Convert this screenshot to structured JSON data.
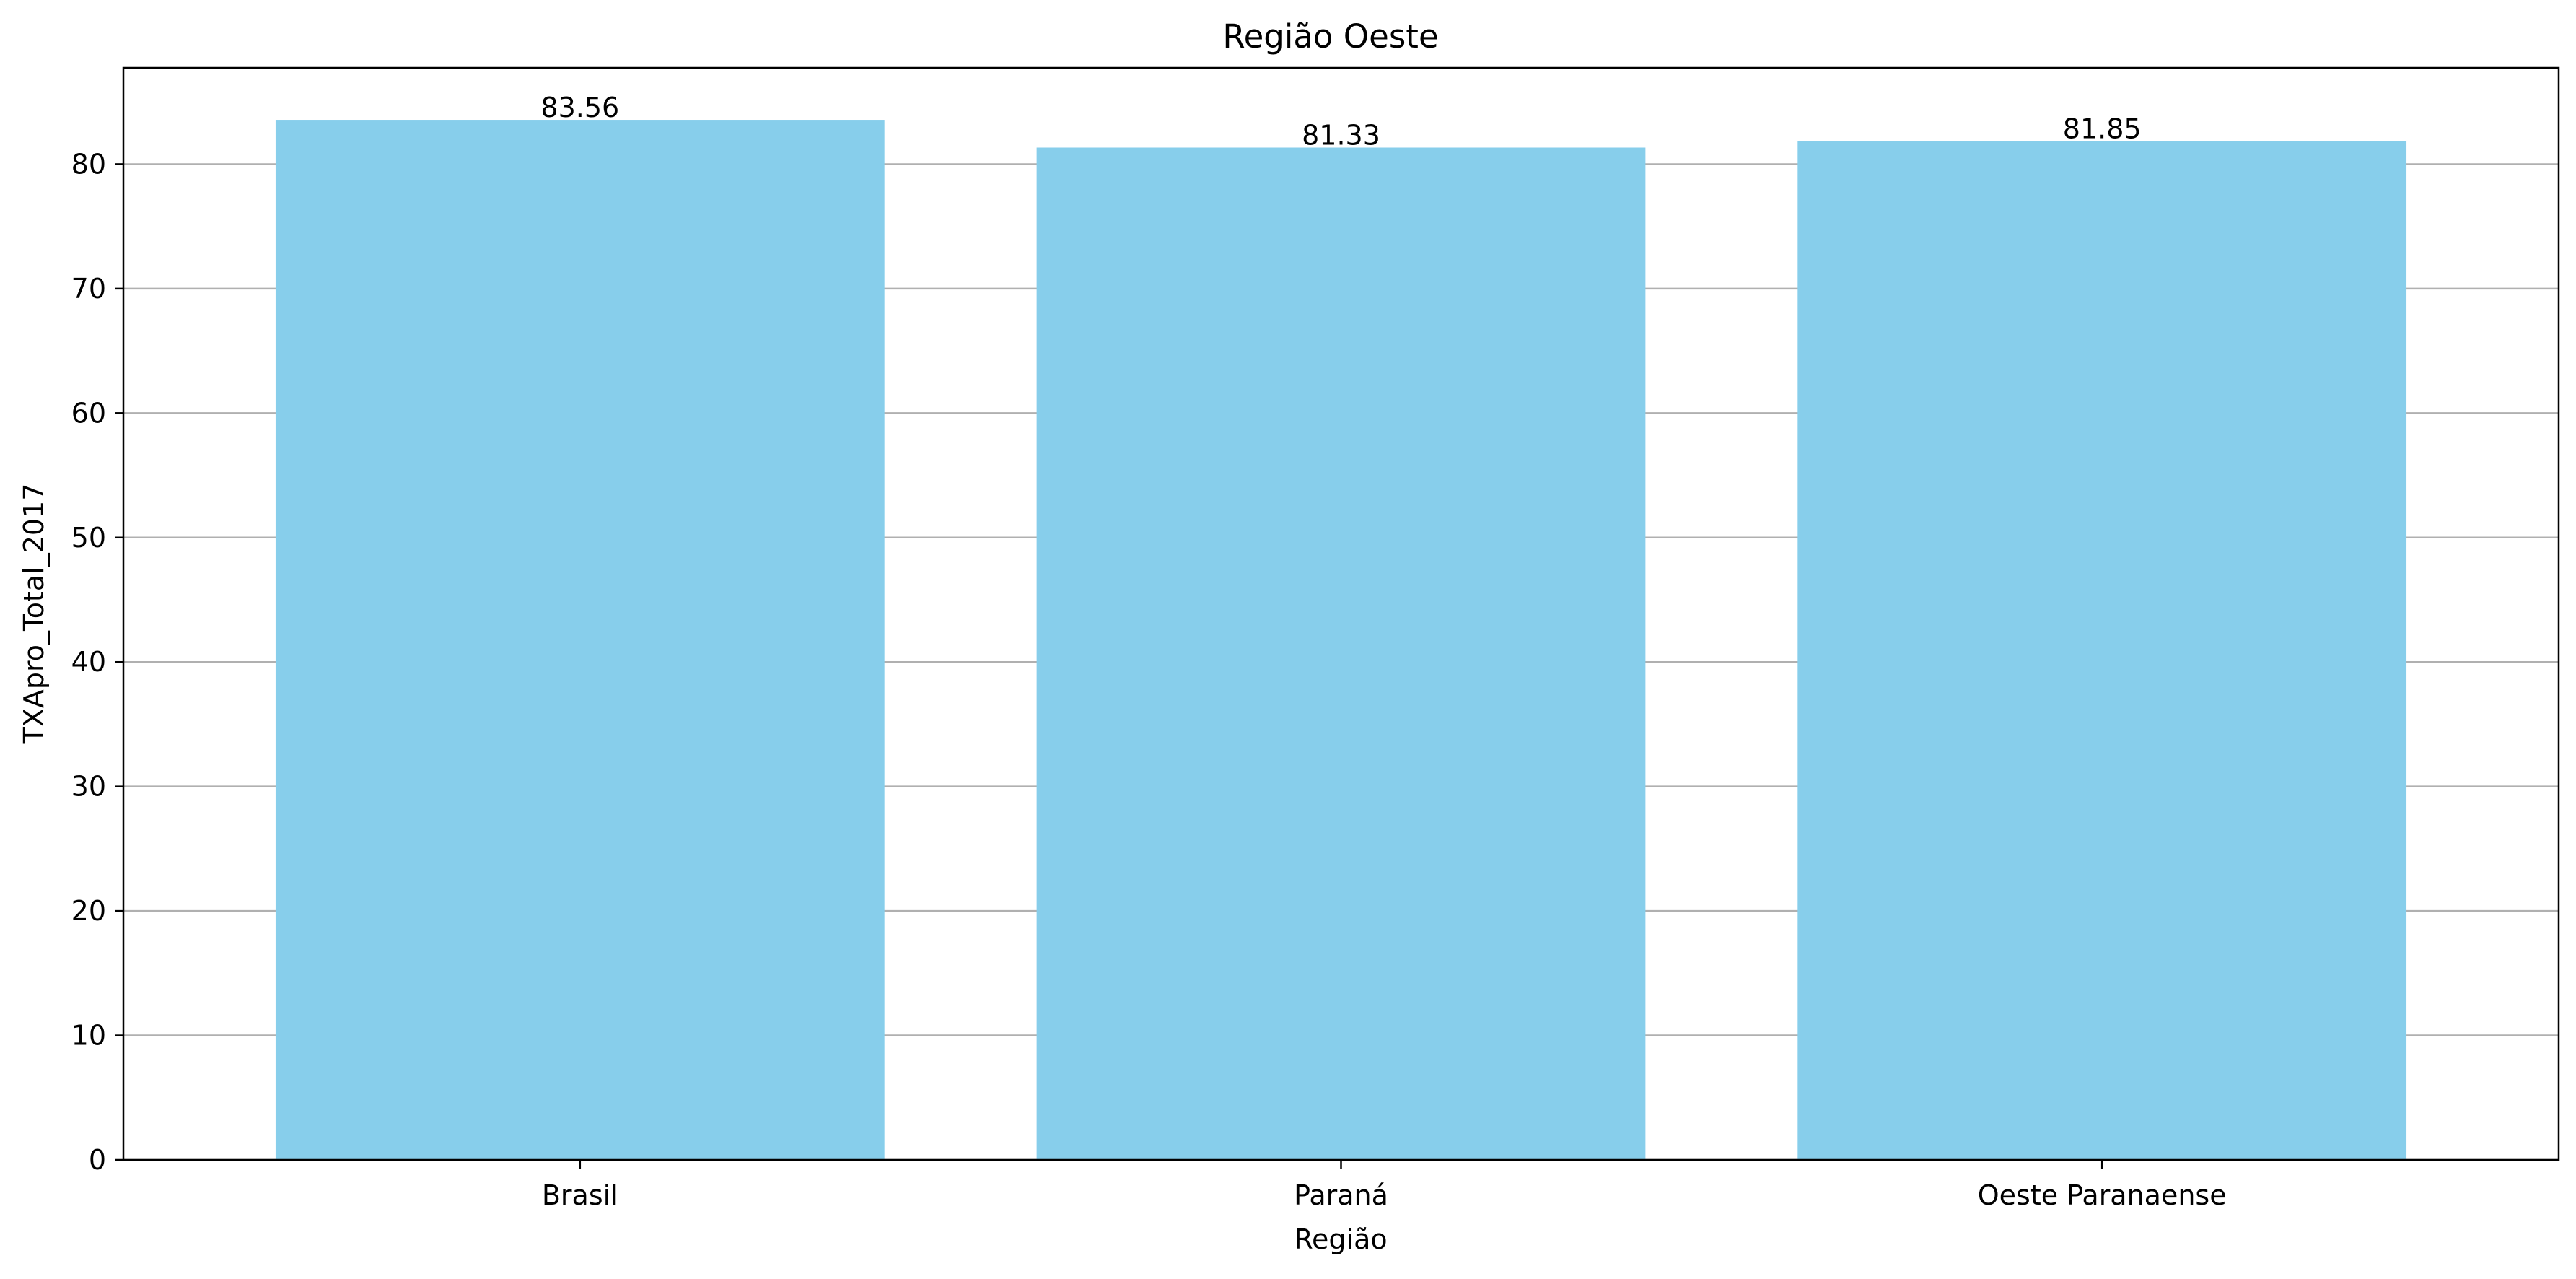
{
  "chart_data": {
    "type": "bar",
    "title": "Região Oeste",
    "xlabel": "Região",
    "ylabel": "TXApro_Total_2017",
    "categories": [
      "Brasil",
      "Paraná",
      "Oeste Paranaense"
    ],
    "values": [
      83.56,
      81.33,
      81.85
    ],
    "value_labels": [
      "83.56",
      "81.33",
      "81.85"
    ],
    "ylim": [
      0,
      87.738
    ],
    "yticks": [
      0,
      10,
      20,
      30,
      40,
      50,
      60,
      70,
      80
    ],
    "grid": "horizontal",
    "colors": {
      "bar": "#87ceeb",
      "grid": "#b0b0b0",
      "axis": "#000000",
      "text": "#000000"
    }
  }
}
